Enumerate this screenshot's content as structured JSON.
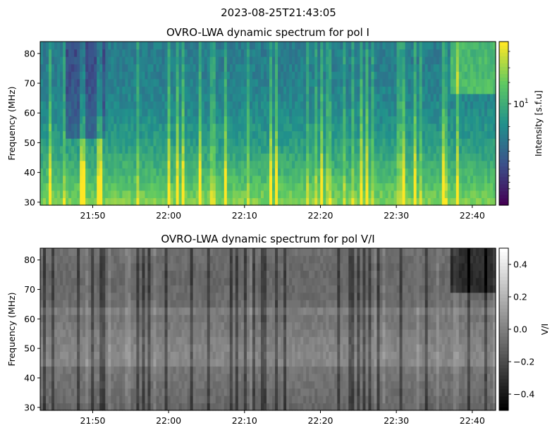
{
  "figure": {
    "suptitle": "2023-08-25T21:43:05"
  },
  "chart_data": [
    {
      "type": "heatmap",
      "title": "OVRO-LWA dynamic spectrum for pol I",
      "xlabel": "",
      "ylabel": "Frequency (MHz)",
      "x_tick_labels": [
        "21:50",
        "22:00",
        "22:10",
        "22:20",
        "22:30",
        "22:40"
      ],
      "x_ticks_minutes_after_21_00": [
        50,
        60,
        70,
        80,
        90,
        100
      ],
      "xlim_time": [
        "21:43:05",
        "22:43:05"
      ],
      "y_ticks": [
        30,
        40,
        50,
        60,
        70,
        80
      ],
      "ylim": [
        29,
        84
      ],
      "colormap": "viridis",
      "color_scale": "log",
      "colorbar": {
        "label": "Intensity [s.f.u]",
        "major_tick_label": "10",
        "major_tick_exponent": "1",
        "orientation": "vertical",
        "placement": "right"
      }
    },
    {
      "type": "heatmap",
      "title": "OVRO-LWA dynamic spectrum for pol V/I",
      "xlabel": "",
      "ylabel": "Frequency (MHz)",
      "x_tick_labels": [
        "21:50",
        "22:00",
        "22:10",
        "22:20",
        "22:30",
        "22:40"
      ],
      "x_ticks_minutes_after_21_00": [
        50,
        60,
        70,
        80,
        90,
        100
      ],
      "xlim_time": [
        "21:43:05",
        "22:43:05"
      ],
      "y_ticks": [
        30,
        40,
        50,
        60,
        70,
        80
      ],
      "ylim": [
        29,
        84
      ],
      "colormap": "gray",
      "color_scale": "linear",
      "colorbar": {
        "label": "V/I",
        "ticks": [
          0.4,
          0.2,
          0.0,
          -0.2,
          -0.4
        ],
        "tick_labels": [
          "0.4",
          "0.2",
          "0.0",
          "−0.2",
          "−0.4"
        ],
        "range": [
          -0.5,
          0.5
        ],
        "orientation": "vertical",
        "placement": "right"
      }
    }
  ]
}
